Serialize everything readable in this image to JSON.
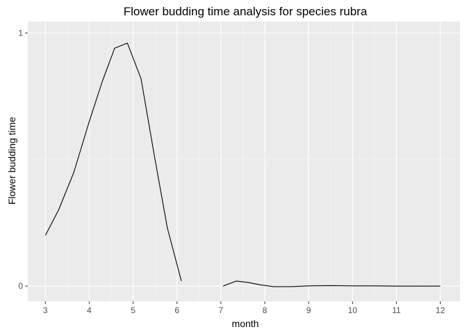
{
  "colors": {
    "panel_background": "#ebebeb",
    "grid_major": "#ffffff",
    "grid_minor": "#f5f5f5",
    "line": "#000000",
    "tick_label": "#4d4d4d",
    "text": "#000000"
  },
  "chart_data": {
    "type": "line",
    "title": "Flower budding time analysis for species rubra",
    "xlabel": "month",
    "ylabel": "Flower budding time",
    "xlim": [
      2.6,
      12.45
    ],
    "ylim": [
      -0.06,
      1.045
    ],
    "x_ticks": [
      3,
      4,
      5,
      6,
      7,
      8,
      9,
      10,
      11,
      12
    ],
    "x_tick_labels": [
      "3",
      "4",
      "5",
      "6",
      "7",
      "8",
      "9",
      "10",
      "11",
      "12"
    ],
    "y_ticks": [
      0,
      1
    ],
    "y_tick_labels": [
      "0",
      "1"
    ],
    "grid": true,
    "legend": "none",
    "series": [
      {
        "segments": [
          {
            "x": [
              3.0,
              3.3,
              3.65,
              4.0,
              4.3,
              4.58,
              4.87,
              5.18,
              5.5,
              5.78,
              6.1
            ],
            "y": [
              0.2,
              0.3,
              0.45,
              0.65,
              0.81,
              0.94,
              0.96,
              0.82,
              0.5,
              0.23,
              0.02
            ]
          },
          {
            "x": [
              7.05,
              7.35,
              7.6,
              7.9,
              8.2,
              8.6,
              9.0,
              9.5,
              10.0,
              10.5,
              11.0,
              11.5,
              12.0
            ],
            "y": [
              0.0,
              0.02,
              0.015,
              0.005,
              -0.002,
              -0.002,
              0.001,
              0.002,
              0.001,
              0.001,
              0.0,
              0.0,
              0.0
            ]
          }
        ]
      }
    ]
  }
}
